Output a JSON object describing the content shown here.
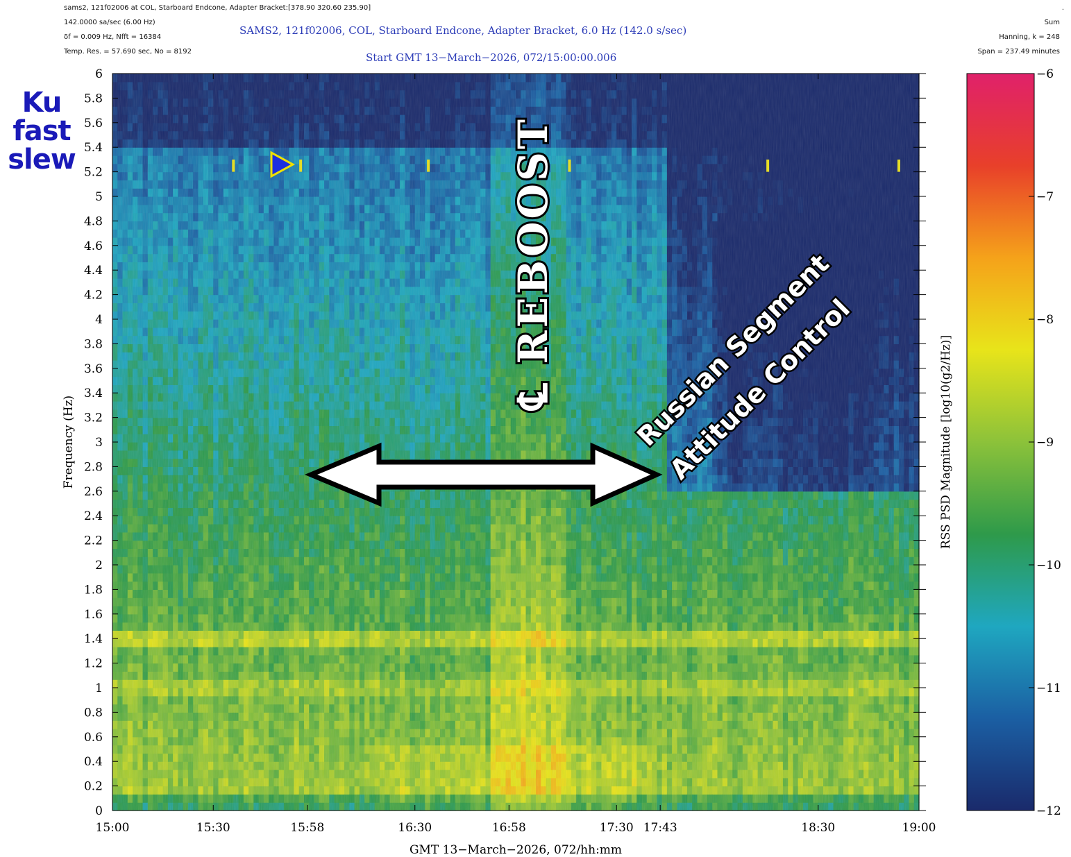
{
  "header": {
    "line1": "sams2, 121f02006 at COL, Starboard Endcone, Adapter Bracket:[378.90 320.60 235.90]",
    "line2": "142.0000 sa/sec (6.00 Hz)",
    "line3": "δf = 0.009 Hz,  Nfft = 16384",
    "line4": "Temp. Res. = 57.690 sec, No = 8192",
    "right1": ".",
    "right2": "Sum",
    "right3": "Hanning, k = 248",
    "right4": "Span = 237.49 minutes"
  },
  "chart_data": {
    "type": "heatmap",
    "title": "SAMS2, 121f02006, COL, Starboard Endcone, Adapter Bracket, 6.0 Hz (142.0 s/sec)",
    "subtitle": "Start GMT 13−March−2026, 072/15:00:00.006",
    "xlabel": "GMT 13−March−2026, 072/hh:mm",
    "ylabel": "Frequency (Hz)",
    "colorbar_label": "RSS PSD Magnitude [log10(g2/Hz)]",
    "x_range_minutes": [
      0,
      240
    ],
    "ylim": [
      0,
      6
    ],
    "clim": [
      -12,
      -6
    ],
    "x_ticks": [
      {
        "minutes": 0,
        "label": "15:00"
      },
      {
        "minutes": 30,
        "label": "15:30"
      },
      {
        "minutes": 58,
        "label": "15:58"
      },
      {
        "minutes": 90,
        "label": "16:30"
      },
      {
        "minutes": 118,
        "label": "16:58"
      },
      {
        "minutes": 150,
        "label": "17:30"
      },
      {
        "minutes": 163,
        "label": "17:43"
      },
      {
        "minutes": 210,
        "label": "18:30"
      },
      {
        "minutes": 240,
        "label": "19:00"
      }
    ],
    "y_ticks": [
      "0",
      "0.2",
      "0.4",
      "0.6",
      "0.8",
      "1",
      "1.2",
      "1.4",
      "1.6",
      "1.8",
      "2",
      "2.2",
      "2.4",
      "2.6",
      "2.8",
      "3",
      "3.2",
      "3.4",
      "3.6",
      "3.8",
      "4",
      "4.2",
      "4.4",
      "4.6",
      "4.8",
      "5",
      "5.2",
      "5.4",
      "5.6",
      "5.8",
      "6"
    ],
    "colorbar_ticks": [
      "−6",
      "−7",
      "−8",
      "−9",
      "−10",
      "−11",
      "−12"
    ],
    "colormap": [
      "#1a2a6b",
      "#1b5fa3",
      "#1fa7c0",
      "#2e9a4a",
      "#8cc23a",
      "#e8e41a",
      "#f5a21a",
      "#e8402a",
      "#e0216a"
    ],
    "features": [
      {
        "name": "1.4 Hz band",
        "freq_hz": 1.4,
        "level": -8.0
      },
      {
        "name": "Reboost",
        "start_min": 113,
        "end_min": 135
      },
      {
        "name": "Russian segment attitude control",
        "start_min": 58,
        "end_min": 163
      },
      {
        "name": "Ku fast slew",
        "freq_hz": 5.25
      }
    ],
    "annotations": {
      "reboost": "℄ REBOOST",
      "russian_line1": "Russian Segment",
      "russian_line2": "Attitude Control",
      "ku": "Ku fast slew"
    }
  }
}
